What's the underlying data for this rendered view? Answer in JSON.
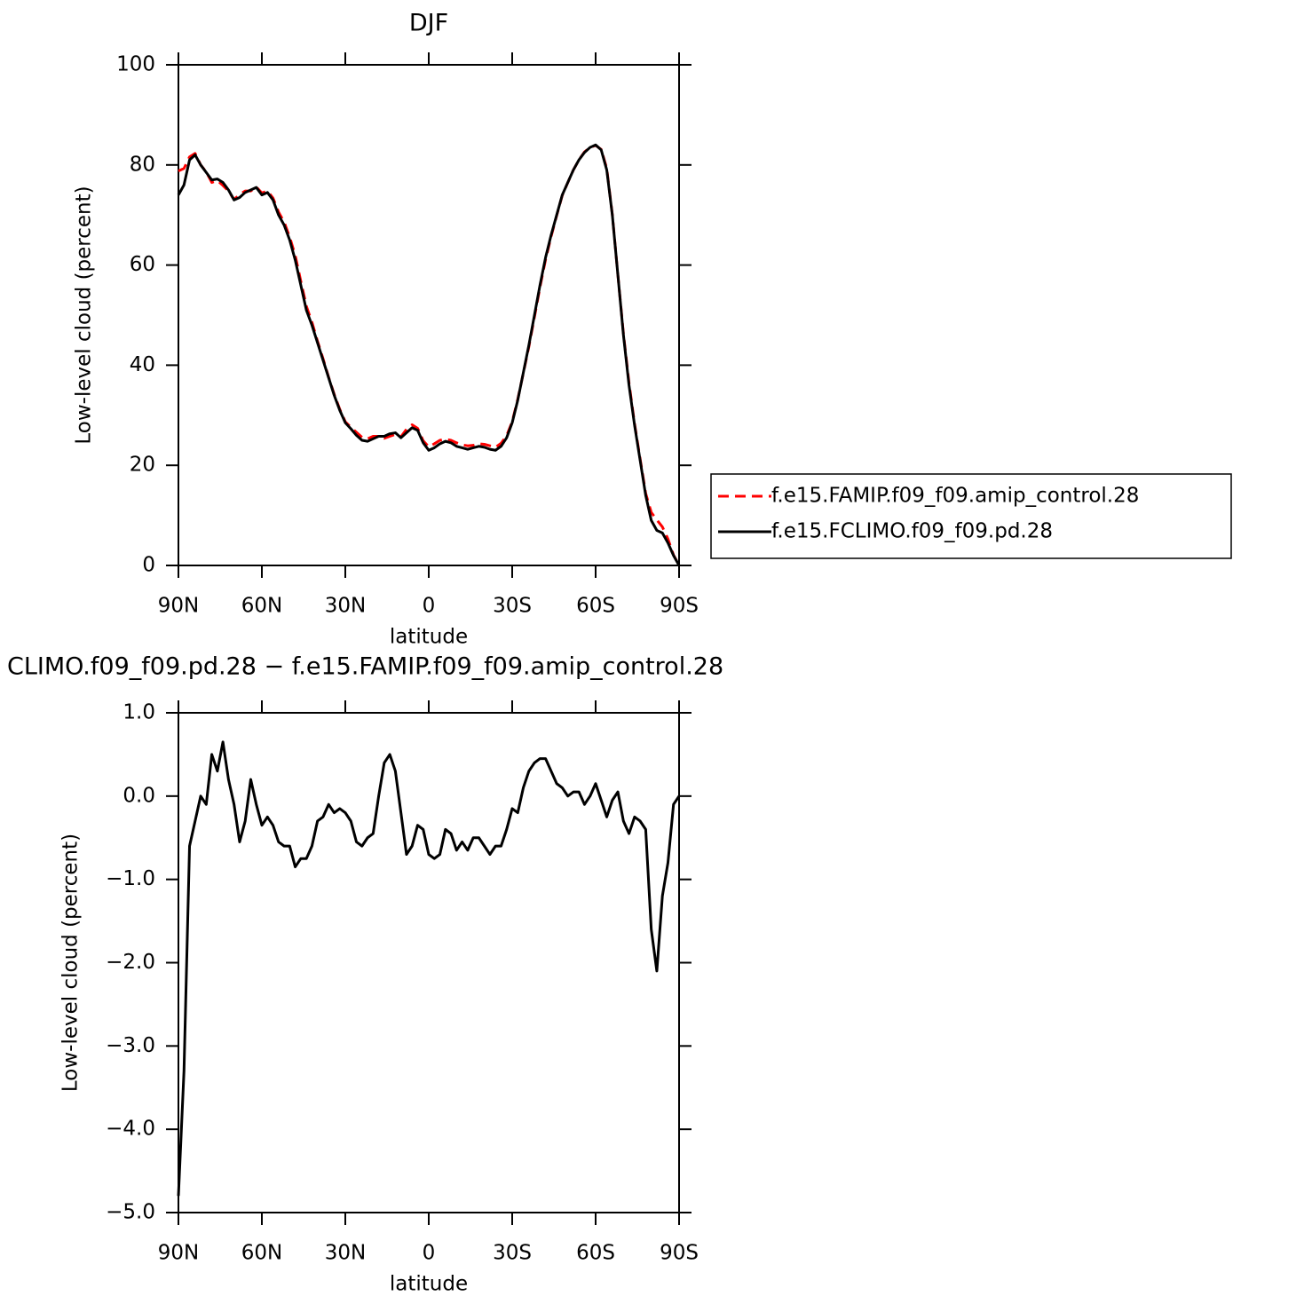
{
  "chart_data": [
    {
      "type": "line",
      "title": "DJF",
      "x_label": "latitude",
      "y_label": "Low-level cloud (percent)",
      "xlim": [
        90,
        -90
      ],
      "xticks": [
        {
          "value": 90,
          "label": "90N"
        },
        {
          "value": 60,
          "label": "60N"
        },
        {
          "value": 30,
          "label": "30N"
        },
        0,
        {
          "value": -30,
          "label": "30S"
        },
        {
          "value": -60,
          "label": "60S"
        },
        {
          "value": -90,
          "label": "90S"
        }
      ],
      "ylim": [
        0,
        100
      ],
      "yticks": [
        0,
        20,
        40,
        60,
        80,
        100
      ],
      "legend": "right",
      "x": [
        90,
        88,
        86,
        84,
        82,
        80,
        78,
        76,
        74,
        72,
        70,
        68,
        66,
        64,
        62,
        60,
        58,
        56,
        54,
        52,
        50,
        48,
        46,
        44,
        42,
        40,
        38,
        36,
        34,
        32,
        30,
        28,
        26,
        24,
        22,
        20,
        18,
        16,
        14,
        12,
        10,
        8,
        6,
        4,
        2,
        0,
        -2,
        -4,
        -6,
        -8,
        -10,
        -12,
        -14,
        -16,
        -18,
        -20,
        -22,
        -24,
        -26,
        -28,
        -30,
        -32,
        -34,
        -36,
        -38,
        -40,
        -42,
        -44,
        -46,
        -48,
        -50,
        -52,
        -54,
        -56,
        -58,
        -60,
        -62,
        -64,
        -66,
        -68,
        -70,
        -72,
        -74,
        -76,
        -78,
        -80,
        -82,
        -84,
        -86,
        -88,
        -90
      ],
      "series": [
        {
          "name": "f.e15.FAMIP.f09_f09.amip_control.28",
          "color": "#ff0000",
          "dashed": true,
          "values": [
            78.8,
            79.3,
            81.6,
            82.3,
            80,
            78.6,
            76.5,
            76.9,
            75.9,
            74.8,
            73.1,
            74.1,
            74.8,
            74.8,
            75.6,
            74.4,
            74.8,
            73.4,
            70.6,
            68.6,
            65.6,
            61.9,
            56.8,
            51.8,
            48.6,
            44.8,
            41.3,
            37.6,
            34.2,
            31.2,
            28.7,
            27.6,
            26.6,
            25.6,
            25.3,
            25.8,
            25.8,
            25.4,
            25.8,
            26.2,
            25.7,
            27.2,
            28.1,
            27.4,
            24.9,
            23.7,
            24.3,
            25,
            25.2,
            25,
            24.5,
            24.1,
            23.9,
            24,
            24.3,
            24.2,
            23.9,
            23.6,
            24.4,
            25.9,
            28.7,
            33.2,
            38.4,
            43.7,
            49.6,
            55.6,
            61.1,
            65.7,
            69.9,
            73.9,
            76.5,
            79,
            81,
            82.6,
            83.5,
            83.9,
            83.1,
            79.3,
            70.1,
            58,
            46.3,
            36.5,
            28.3,
            21.3,
            14.4,
            10.6,
            9.1,
            7.7,
            5.3,
            2.1,
            0
          ]
        },
        {
          "name": "f.e15.FCLIMO.f09_f09.pd.28",
          "color": "#000000",
          "dashed": false,
          "values": [
            74,
            76,
            81,
            82,
            80,
            78.5,
            77,
            77.2,
            76.5,
            75,
            73,
            73.5,
            74.5,
            75,
            75.5,
            74,
            74.5,
            73,
            70,
            68,
            65,
            61,
            56,
            51,
            48,
            44.5,
            41,
            37.5,
            34,
            31,
            28.5,
            27.3,
            26,
            25,
            24.8,
            25.3,
            25.8,
            25.8,
            26.3,
            26.5,
            25.5,
            26.5,
            27.5,
            27,
            24.5,
            23,
            23.5,
            24.3,
            24.8,
            24.5,
            23.8,
            23.5,
            23.2,
            23.5,
            23.8,
            23.6,
            23.2,
            23,
            23.8,
            25.5,
            28.5,
            33,
            38.5,
            44,
            50,
            56,
            61.5,
            66,
            70,
            74,
            76.5,
            79,
            81,
            82.5,
            83.5,
            84,
            83,
            79,
            70,
            58,
            46,
            36,
            28,
            21,
            14,
            9,
            7,
            6.5,
            4.5,
            2,
            0
          ]
        }
      ]
    },
    {
      "type": "line",
      "title": "CLIMO.f09_f09.pd.28 − f.e15.FAMIP.f09_f09.amip_control.28",
      "x_label": "latitude",
      "y_label": "Low-level cloud (percent)",
      "xlim": [
        90,
        -90
      ],
      "xticks": [
        {
          "value": 90,
          "label": "90N"
        },
        {
          "value": 60,
          "label": "60N"
        },
        {
          "value": 30,
          "label": "30N"
        },
        0,
        {
          "value": -30,
          "label": "30S"
        },
        {
          "value": -60,
          "label": "60S"
        },
        {
          "value": -90,
          "label": "90S"
        }
      ],
      "ylim": [
        -5,
        1
      ],
      "yticks": [
        {
          "value": -5,
          "label": "−5.0"
        },
        {
          "value": -4,
          "label": "−4.0"
        },
        {
          "value": -3,
          "label": "−3.0"
        },
        {
          "value": -2,
          "label": "−2.0"
        },
        {
          "value": -1,
          "label": "−1.0"
        },
        {
          "value": 0,
          "label": "0.0"
        },
        {
          "value": 1,
          "label": "1.0"
        }
      ],
      "x": [
        90,
        88,
        86,
        84,
        82,
        80,
        78,
        76,
        74,
        72,
        70,
        68,
        66,
        64,
        62,
        60,
        58,
        56,
        54,
        52,
        50,
        48,
        46,
        44,
        42,
        40,
        38,
        36,
        34,
        32,
        30,
        28,
        26,
        24,
        22,
        20,
        18,
        16,
        14,
        12,
        10,
        8,
        6,
        4,
        2,
        0,
        -2,
        -4,
        -6,
        -8,
        -10,
        -12,
        -14,
        -16,
        -18,
        -20,
        -22,
        -24,
        -26,
        -28,
        -30,
        -32,
        -34,
        -36,
        -38,
        -40,
        -42,
        -44,
        -46,
        -48,
        -50,
        -52,
        -54,
        -56,
        -58,
        -60,
        -62,
        -64,
        -66,
        -68,
        -70,
        -72,
        -74,
        -76,
        -78,
        -80,
        -82,
        -84,
        -86,
        -88,
        -90
      ],
      "color": "#000000",
      "values": [
        -4.8,
        -3.3,
        -0.6,
        -0.3,
        0,
        -0.1,
        0.5,
        0.3,
        0.65,
        0.2,
        -0.1,
        -0.55,
        -0.3,
        0.2,
        -0.1,
        -0.35,
        -0.25,
        -0.35,
        -0.55,
        -0.6,
        -0.6,
        -0.85,
        -0.75,
        -0.75,
        -0.6,
        -0.3,
        -0.25,
        -0.1,
        -0.2,
        -0.15,
        -0.2,
        -0.3,
        -0.55,
        -0.6,
        -0.5,
        -0.45,
        0,
        0.4,
        0.5,
        0.3,
        -0.2,
        -0.7,
        -0.6,
        -0.35,
        -0.4,
        -0.7,
        -0.75,
        -0.7,
        -0.4,
        -0.45,
        -0.65,
        -0.55,
        -0.65,
        -0.5,
        -0.5,
        -0.6,
        -0.7,
        -0.6,
        -0.6,
        -0.4,
        -0.15,
        -0.2,
        0.1,
        0.3,
        0.4,
        0.45,
        0.45,
        0.3,
        0.15,
        0.1,
        0,
        0.05,
        0.05,
        -0.1,
        0,
        0.15,
        -0.05,
        -0.25,
        -0.05,
        0.05,
        -0.3,
        -0.45,
        -0.25,
        -0.3,
        -0.4,
        -1.6,
        -2.1,
        -1.2,
        -0.8,
        -0.1,
        0
      ]
    }
  ]
}
